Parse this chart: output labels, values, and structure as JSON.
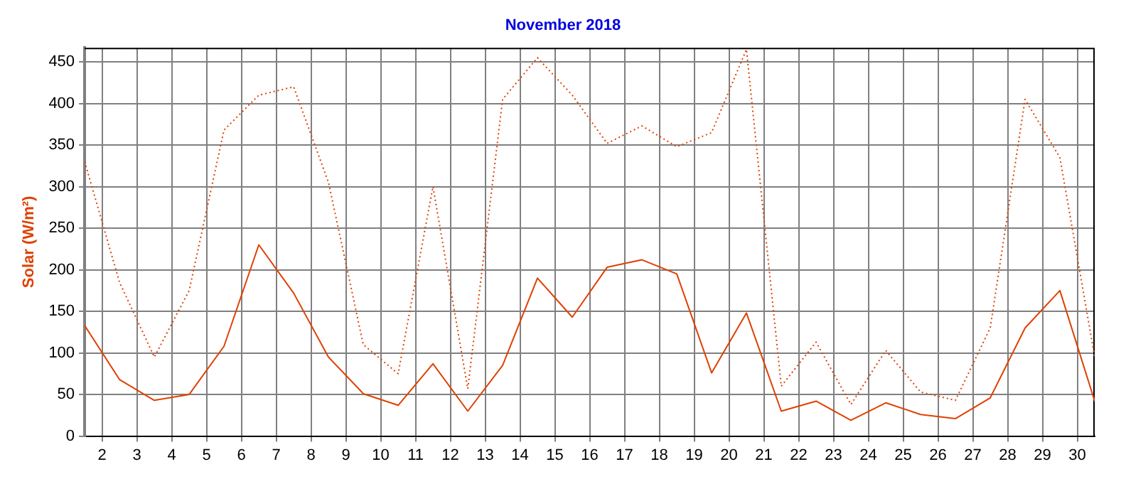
{
  "chart_data": {
    "type": "line",
    "title": "November 2018",
    "ylabel": "Solar (W/m²)",
    "x": [
      1.5,
      2.5,
      3.5,
      4.5,
      5.5,
      6.5,
      7.5,
      8.5,
      9.5,
      10.5,
      11.5,
      12.5,
      13.5,
      14.5,
      15.5,
      16.5,
      17.5,
      18.5,
      19.5,
      20.5,
      21.5,
      22.5,
      23.5,
      24.5,
      25.5,
      26.5,
      27.5,
      28.5,
      29.5,
      30.5
    ],
    "series": [
      {
        "color": "#e04000",
        "line_style": "dotted",
        "values": [
          330,
          185,
          95,
          175,
          368,
          410,
          420,
          305,
          110,
          75,
          300,
          57,
          405,
          455,
          410,
          352,
          373,
          348,
          365,
          465,
          60,
          113,
          38,
          103,
          53,
          43,
          130,
          405,
          335,
          95
        ]
      },
      {
        "color": "#e04000",
        "line_style": "solid",
        "values": [
          133,
          68,
          43,
          50,
          108,
          230,
          172,
          95,
          51,
          37,
          87,
          30,
          85,
          190,
          143,
          203,
          212,
          195,
          76,
          148,
          30,
          42,
          19,
          40,
          26,
          21,
          46,
          130,
          175,
          42
        ]
      }
    ],
    "xlim": [
      1.5,
      30.5
    ],
    "xticks": [
      2,
      3,
      4,
      5,
      6,
      7,
      8,
      9,
      10,
      11,
      12,
      13,
      14,
      15,
      16,
      17,
      18,
      19,
      20,
      21,
      22,
      23,
      24,
      25,
      26,
      27,
      28,
      29,
      30
    ],
    "ylim": [
      0,
      467
    ],
    "yticks": [
      0,
      50,
      100,
      150,
      200,
      250,
      300,
      350,
      400,
      450
    ],
    "grid": true,
    "legend": false,
    "marker": "none"
  }
}
